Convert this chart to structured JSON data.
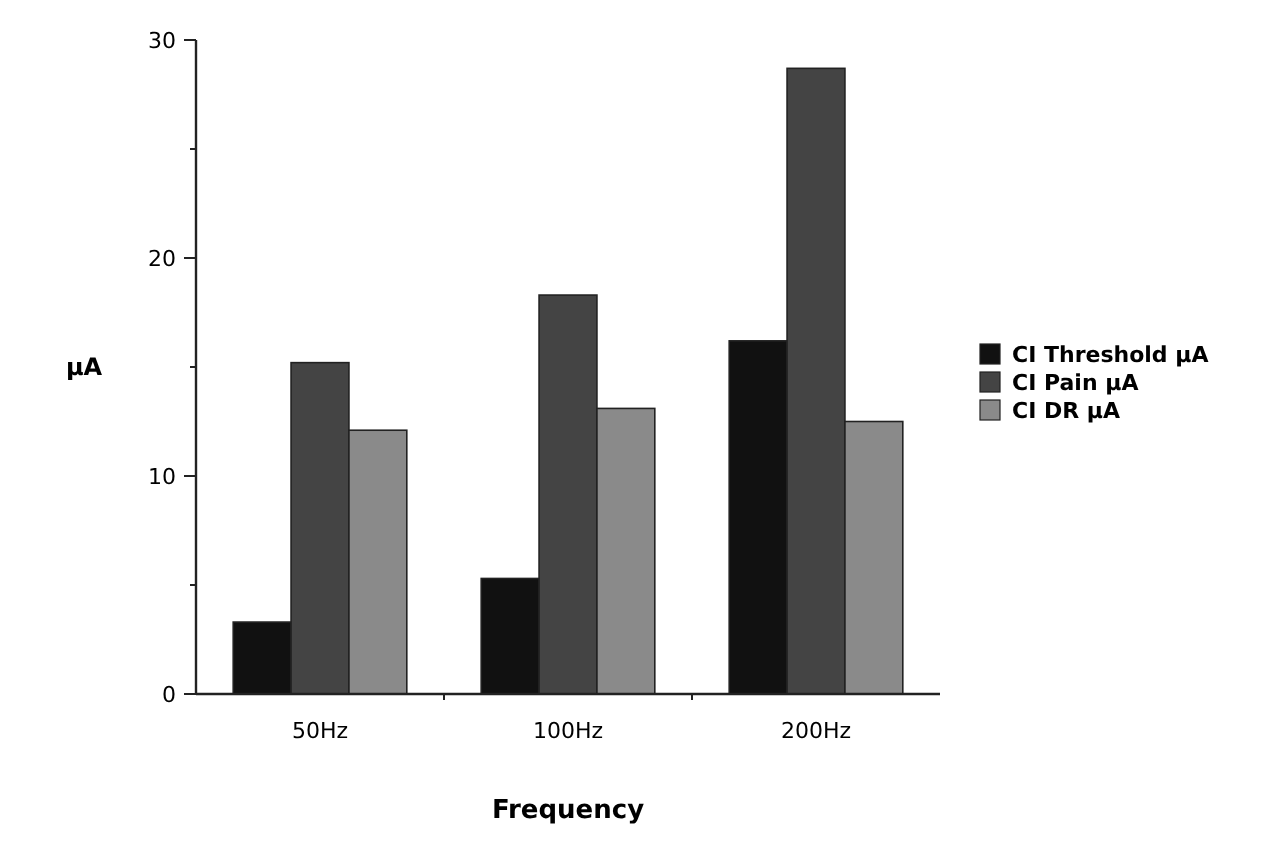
{
  "chart_data": {
    "type": "bar",
    "xlabel": "Frequency",
    "ylabel": "µA",
    "categories": [
      "50Hz",
      "100Hz",
      "200Hz"
    ],
    "series": [
      {
        "name": "CI Threshold µA",
        "color": "#111111",
        "values": [
          3.3,
          5.3,
          16.2
        ]
      },
      {
        "name": "CI Pain µA",
        "color": "#444444",
        "values": [
          15.2,
          18.3,
          28.7
        ]
      },
      {
        "name": "CI DR µA",
        "color": "#8a8a8a",
        "values": [
          12.1,
          13.1,
          12.5
        ]
      }
    ],
    "ylim": [
      0,
      30
    ],
    "yticks": [
      0,
      {
        "value": 5,
        "label": null
      },
      10,
      {
        "value": 15,
        "label": null
      },
      20,
      {
        "value": 25,
        "label": null
      },
      30
    ],
    "grid": false,
    "legend": "right"
  }
}
